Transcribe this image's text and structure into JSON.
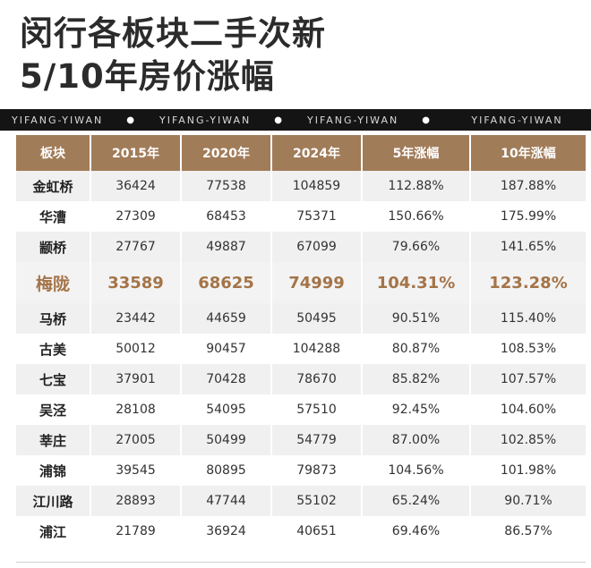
{
  "title": {
    "line1": "闵行各板块二手次新",
    "line2": "5/10年房价涨幅"
  },
  "banner": {
    "text": "YIFANG-YIWAN",
    "separator": "●"
  },
  "table": {
    "headers": [
      "板块",
      "2015年",
      "2020年",
      "2024年",
      "5年涨幅",
      "10年涨幅"
    ],
    "rows": [
      [
        "金虹桥",
        "36424",
        "77538",
        "104859",
        "112.88%",
        "187.88%"
      ],
      [
        "华漕",
        "27309",
        "68453",
        "75371",
        "150.66%",
        "175.99%"
      ],
      [
        "颛桥",
        "27767",
        "49887",
        "67099",
        "79.66%",
        "141.65%"
      ],
      [
        "梅陇",
        "33589",
        "68625",
        "74999",
        "104.31%",
        "123.28%"
      ],
      [
        "马桥",
        "23442",
        "44659",
        "50495",
        "90.51%",
        "115.40%"
      ],
      [
        "古美",
        "50012",
        "90457",
        "104288",
        "80.87%",
        "108.53%"
      ],
      [
        "七宝",
        "37901",
        "70428",
        "78670",
        "85.82%",
        "107.57%"
      ],
      [
        "吴泾",
        "28108",
        "54095",
        "57510",
        "92.45%",
        "104.60%"
      ],
      [
        "莘庄",
        "27005",
        "50499",
        "54779",
        "87.00%",
        "102.85%"
      ],
      [
        "浦锦",
        "39545",
        "80895",
        "79873",
        "104.56%",
        "101.98%"
      ],
      [
        "江川路",
        "28893",
        "47744",
        "55102",
        "65.24%",
        "90.71%"
      ],
      [
        "浦江",
        "21789",
        "36924",
        "40651",
        "69.46%",
        "86.57%"
      ]
    ],
    "highlight_row": 3
  },
  "colors": {
    "header_bg": "#a17c59",
    "highlight_text": "#a47448",
    "banner_bg": "#141414"
  }
}
